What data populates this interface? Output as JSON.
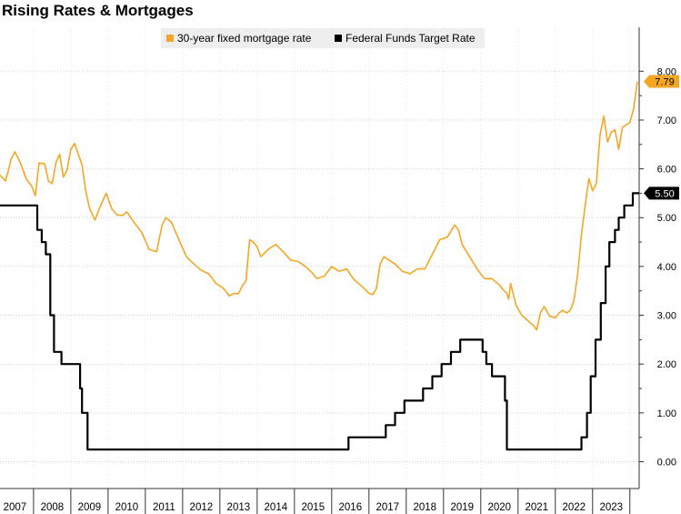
{
  "chart_data": {
    "type": "line",
    "title": "Rising Rates & Mortgages",
    "xlabel": "",
    "ylabel": "",
    "xlim": [
      2006.6,
      2023.75
    ],
    "ylim": [
      -0.55,
      8.9
    ],
    "grid": true,
    "legend_position": "top-center",
    "x_ticks": [
      "2007",
      "2008",
      "2009",
      "2010",
      "2011",
      "2012",
      "2013",
      "2014",
      "2015",
      "2016",
      "2017",
      "2018",
      "2019",
      "2020",
      "2021",
      "2022",
      "2023"
    ],
    "y_ticks": [
      "0.00",
      "1.00",
      "2.00",
      "3.00",
      "4.00",
      "5.00",
      "6.00",
      "7.00",
      "8.00"
    ],
    "series": [
      {
        "name": "30-year fixed mortgage rate",
        "color": "#f5a623",
        "last_value_label": "7.79",
        "x": [
          2006.6,
          2006.75,
          2006.9,
          2007.0,
          2007.15,
          2007.3,
          2007.45,
          2007.55,
          2007.65,
          2007.8,
          2007.9,
          2008.0,
          2008.1,
          2008.2,
          2008.3,
          2008.4,
          2008.5,
          2008.6,
          2008.7,
          2008.8,
          2008.9,
          2009.0,
          2009.15,
          2009.3,
          2009.45,
          2009.6,
          2009.75,
          2009.9,
          2010.0,
          2010.2,
          2010.4,
          2010.6,
          2010.8,
          2010.95,
          2011.05,
          2011.2,
          2011.4,
          2011.6,
          2011.8,
          2012.0,
          2012.2,
          2012.4,
          2012.6,
          2012.75,
          2012.9,
          2013.0,
          2013.1,
          2013.2,
          2013.3,
          2013.4,
          2013.5,
          2013.6,
          2013.8,
          2014.0,
          2014.2,
          2014.4,
          2014.6,
          2014.8,
          2015.0,
          2015.1,
          2015.3,
          2015.5,
          2015.7,
          2015.9,
          2016.1,
          2016.3,
          2016.5,
          2016.6,
          2016.7,
          2016.8,
          2016.9,
          2017.0,
          2017.2,
          2017.4,
          2017.6,
          2017.8,
          2018.0,
          2018.2,
          2018.4,
          2018.6,
          2018.8,
          2018.9,
          2019.0,
          2019.2,
          2019.4,
          2019.6,
          2019.8,
          2020.0,
          2020.1,
          2020.2,
          2020.25,
          2020.3,
          2020.45,
          2020.6,
          2020.75,
          2020.9,
          2021.0,
          2021.1,
          2021.2,
          2021.35,
          2021.5,
          2021.6,
          2021.7,
          2021.8,
          2021.9,
          2022.0,
          2022.1,
          2022.2,
          2022.3,
          2022.4,
          2022.5,
          2022.6,
          2022.7,
          2022.8,
          2022.9,
          2023.0,
          2023.1,
          2023.2,
          2023.3,
          2023.4,
          2023.5,
          2023.6,
          2023.7
        ],
        "y": [
          5.87,
          5.75,
          6.2,
          6.35,
          6.12,
          5.8,
          5.65,
          5.45,
          6.12,
          6.1,
          5.75,
          5.7,
          6.12,
          6.3,
          5.83,
          5.98,
          6.4,
          6.52,
          6.3,
          6.08,
          5.55,
          5.2,
          4.95,
          5.25,
          5.5,
          5.18,
          5.05,
          5.05,
          5.12,
          4.9,
          4.7,
          4.35,
          4.3,
          4.85,
          5.0,
          4.9,
          4.55,
          4.2,
          4.05,
          3.92,
          3.85,
          3.65,
          3.55,
          3.4,
          3.45,
          3.44,
          3.6,
          3.7,
          4.55,
          4.5,
          4.4,
          4.2,
          4.35,
          4.45,
          4.3,
          4.13,
          4.1,
          4.0,
          3.85,
          3.75,
          3.8,
          4.0,
          3.9,
          3.95,
          3.73,
          3.6,
          3.45,
          3.42,
          3.55,
          4.05,
          4.2,
          4.15,
          4.05,
          3.9,
          3.85,
          3.95,
          3.95,
          4.25,
          4.55,
          4.6,
          4.85,
          4.75,
          4.45,
          4.2,
          3.95,
          3.75,
          3.75,
          3.62,
          3.52,
          3.45,
          3.33,
          3.65,
          3.2,
          3.0,
          2.9,
          2.8,
          2.7,
          3.05,
          3.18,
          2.98,
          2.95,
          3.05,
          3.1,
          3.05,
          3.1,
          3.3,
          3.85,
          4.65,
          5.25,
          5.8,
          5.55,
          5.7,
          6.7,
          7.08,
          6.55,
          6.75,
          6.8,
          6.4,
          6.85,
          6.9,
          6.95,
          7.23,
          7.79
        ]
      },
      {
        "name": "Federal Funds Target Rate",
        "color": "#000000",
        "last_value_label": "5.50",
        "x": [
          2006.6,
          2007.6,
          2007.6,
          2007.72,
          2007.72,
          2007.83,
          2007.83,
          2007.95,
          2007.95,
          2008.05,
          2008.05,
          2008.25,
          2008.25,
          2008.3,
          2008.3,
          2008.75,
          2008.75,
          2008.8,
          2008.8,
          2008.95,
          2008.95,
          2015.95,
          2015.95,
          2016.95,
          2016.95,
          2017.2,
          2017.2,
          2017.45,
          2017.45,
          2017.95,
          2017.95,
          2018.2,
          2018.2,
          2018.45,
          2018.45,
          2018.7,
          2018.7,
          2018.95,
          2018.95,
          2019.55,
          2019.55,
          2019.65,
          2019.65,
          2019.8,
          2019.8,
          2020.15,
          2020.15,
          2020.2,
          2020.2,
          2022.2,
          2022.2,
          2022.35,
          2022.35,
          2022.45,
          2022.45,
          2022.58,
          2022.58,
          2022.72,
          2022.72,
          2022.85,
          2022.85,
          2022.95,
          2022.95,
          2023.1,
          2023.1,
          2023.2,
          2023.2,
          2023.35,
          2023.35,
          2023.58,
          2023.58,
          2023.75
        ],
        "y": [
          5.25,
          5.25,
          4.75,
          4.75,
          4.5,
          4.5,
          4.25,
          4.25,
          3.0,
          3.0,
          2.25,
          2.25,
          2.0,
          2.0,
          2.0,
          2.0,
          1.5,
          1.5,
          1.0,
          1.0,
          0.25,
          0.25,
          0.5,
          0.5,
          0.75,
          0.75,
          1.0,
          1.0,
          1.25,
          1.25,
          1.5,
          1.5,
          1.75,
          1.75,
          2.0,
          2.0,
          2.25,
          2.25,
          2.5,
          2.5,
          2.25,
          2.25,
          2.0,
          2.0,
          1.75,
          1.75,
          1.25,
          1.25,
          0.25,
          0.25,
          0.5,
          0.5,
          1.0,
          1.0,
          1.75,
          1.75,
          2.5,
          2.5,
          3.25,
          3.25,
          4.0,
          4.0,
          4.5,
          4.5,
          4.75,
          4.75,
          5.0,
          5.0,
          5.25,
          5.25,
          5.5,
          5.5
        ]
      }
    ]
  }
}
